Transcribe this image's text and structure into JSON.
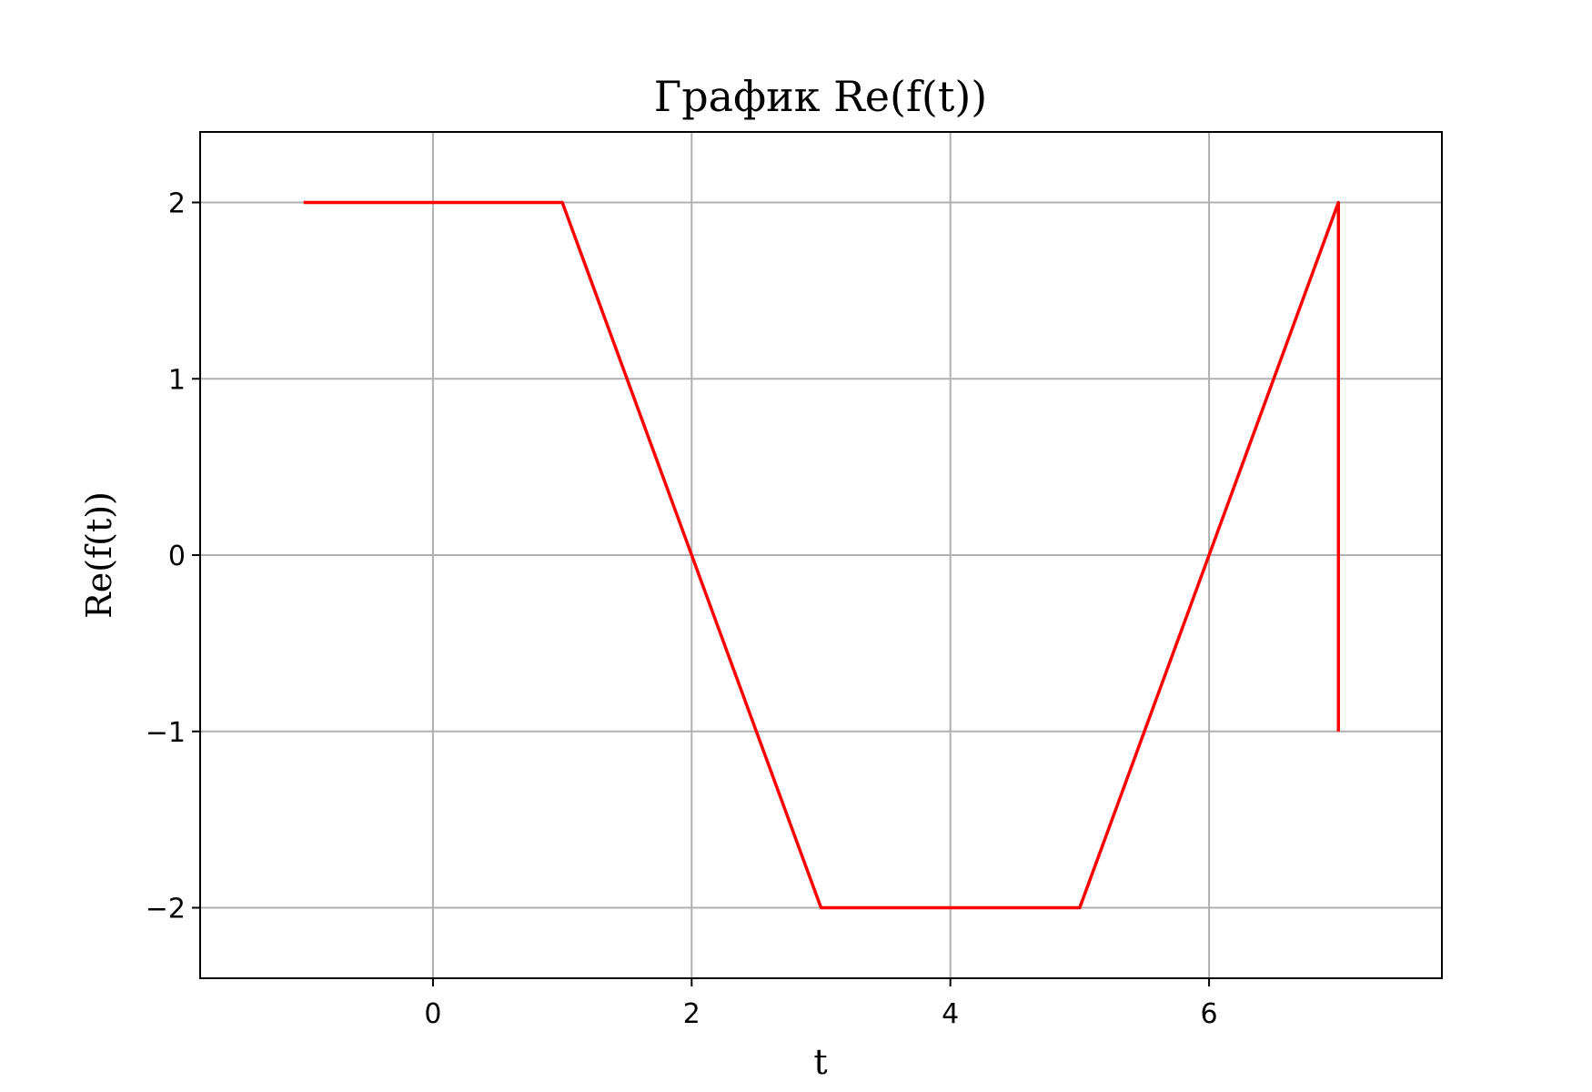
{
  "chart_data": {
    "type": "line",
    "title": "График Re(f(t))",
    "xlabel": "t",
    "ylabel": "Re(f(t))",
    "xlim": [
      -1.8,
      7.8
    ],
    "ylim": [
      -2.4,
      2.4
    ],
    "xticks": [
      0,
      2,
      4,
      6
    ],
    "yticks": [
      -2,
      -1,
      0,
      1,
      2
    ],
    "xtick_labels": [
      "0",
      "2",
      "4",
      "6"
    ],
    "ytick_labels": [
      "−2",
      "−1",
      "0",
      "1",
      "2"
    ],
    "grid": true,
    "series": [
      {
        "color": "#ff0000",
        "x": [
          -1,
          1,
          3,
          5,
          7,
          7
        ],
        "y": [
          2,
          2,
          -2,
          -2,
          2,
          -1
        ]
      }
    ]
  },
  "colors": {
    "line": "#ff0000",
    "grid": "#b0b0b0",
    "axes": "#000000",
    "background": "#ffffff"
  }
}
